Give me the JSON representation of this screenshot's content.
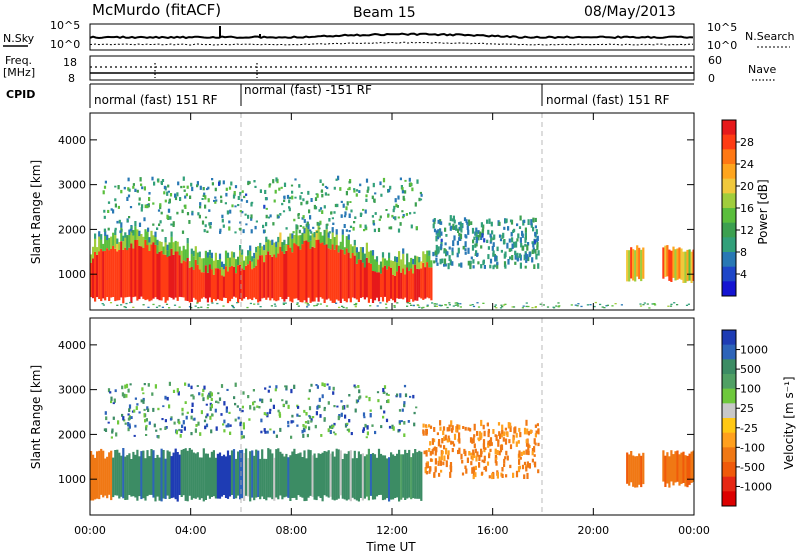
{
  "header": {
    "station": "McMurdo (fitACF)",
    "beam": "Beam 15",
    "date": "08/May/2013"
  },
  "noise_panel": {
    "left_label": "N.Sky",
    "left_ticks": [
      "10^5",
      "10^0"
    ],
    "right_label": "N.Search",
    "right_ticks": [
      "10^5",
      "10^0"
    ]
  },
  "freq_panel": {
    "left_label_line1": "Freq.",
    "left_label_line2": "[MHz]",
    "left_ticks": [
      "18",
      "8"
    ],
    "right_label": "Nave",
    "right_ticks": [
      "60",
      "0"
    ]
  },
  "cpid": {
    "label": "CPID",
    "segments": [
      {
        "start": 0,
        "end": 6.0,
        "text": "normal (fast) 151 RF"
      },
      {
        "start": 6.0,
        "end": 18.0,
        "text": "normal (fast) -151 RF"
      },
      {
        "start": 18.0,
        "end": 24.0,
        "text": "normal (fast) 151 RF"
      }
    ]
  },
  "xaxis": {
    "label": "Time UT",
    "ticks": [
      "00:00",
      "04:00",
      "08:00",
      "12:00",
      "16:00",
      "20:00",
      "00:00"
    ]
  },
  "power_colorbar": {
    "title": "Power [dB]",
    "labels": [
      "28",
      "24",
      "20",
      "16",
      "12",
      "8",
      "4"
    ],
    "colors": [
      "#e6191b",
      "#ff3c14",
      "#ff7814",
      "#ffa51e",
      "#f0c83c",
      "#a0cd3c",
      "#5abe3c",
      "#3ca050",
      "#32a07a",
      "#2878b4",
      "#1e46c8",
      "#1414d2"
    ]
  },
  "velocity_colorbar": {
    "title": "Velocity [m s⁻¹]",
    "labels": [
      "1000",
      "500",
      "100",
      "25",
      "-25",
      "-100",
      "-500",
      "-1000"
    ],
    "colors": [
      "#1e3cb4",
      "#2d64b9",
      "#3c8c64",
      "#50a064",
      "#6ec83c",
      "#c8c8c8",
      "#ffc814",
      "#ffa01e",
      "#f07814",
      "#f05a0a",
      "#e62814",
      "#dc0000"
    ]
  },
  "chart_data": [
    {
      "type": "heatmap",
      "title": "Power",
      "ylabel": "Slant Range [km]",
      "xlabel": "Time UT",
      "xlim": [
        0,
        24
      ],
      "ylim": [
        200,
        4600
      ],
      "yticks": [
        "1000",
        "2000",
        "3000",
        "4000"
      ],
      "regions": [
        {
          "t0": 0.0,
          "t1": 13.5,
          "r0": 450,
          "r1": 1550,
          "note": "strong echoes 24-32 dB"
        },
        {
          "t0": 0.0,
          "t1": 13.5,
          "r0": 1550,
          "r1": 1800,
          "note": "weaker edge 8-16 dB"
        },
        {
          "t0": 0.5,
          "t1": 13.0,
          "r0": 1900,
          "r1": 3100,
          "note": "scattered weak echoes 4-12 dB"
        },
        {
          "t0": 13.5,
          "t1": 18.0,
          "r0": 1100,
          "r1": 2200,
          "note": "patches 4-10 dB"
        },
        {
          "t0": 21.3,
          "t1": 24.0,
          "r0": 700,
          "r1": 1700,
          "note": "late echoes 12-28 dB"
        }
      ]
    },
    {
      "type": "heatmap",
      "title": "Velocity",
      "ylabel": "Slant Range [km]",
      "xlabel": "Time UT",
      "xlim": [
        0,
        24
      ],
      "ylim": [
        200,
        4600
      ],
      "yticks": [
        "1000",
        "2000",
        "3000",
        "4000"
      ],
      "regions": [
        {
          "t0": 0.0,
          "t1": 13.0,
          "r0": 450,
          "r1": 1700,
          "note": "mostly ~100 m/s with positive patches"
        },
        {
          "t0": 0.5,
          "t1": 13.0,
          "r0": 1900,
          "r1": 3100,
          "note": "scattered mixed velocities"
        },
        {
          "t0": 13.0,
          "t1": 18.0,
          "r0": 1000,
          "r1": 2200,
          "note": "-100 to -500 m/s"
        },
        {
          "t0": 21.3,
          "t1": 24.0,
          "r0": 700,
          "r1": 1700,
          "note": "-100 to -500 m/s"
        }
      ]
    }
  ]
}
